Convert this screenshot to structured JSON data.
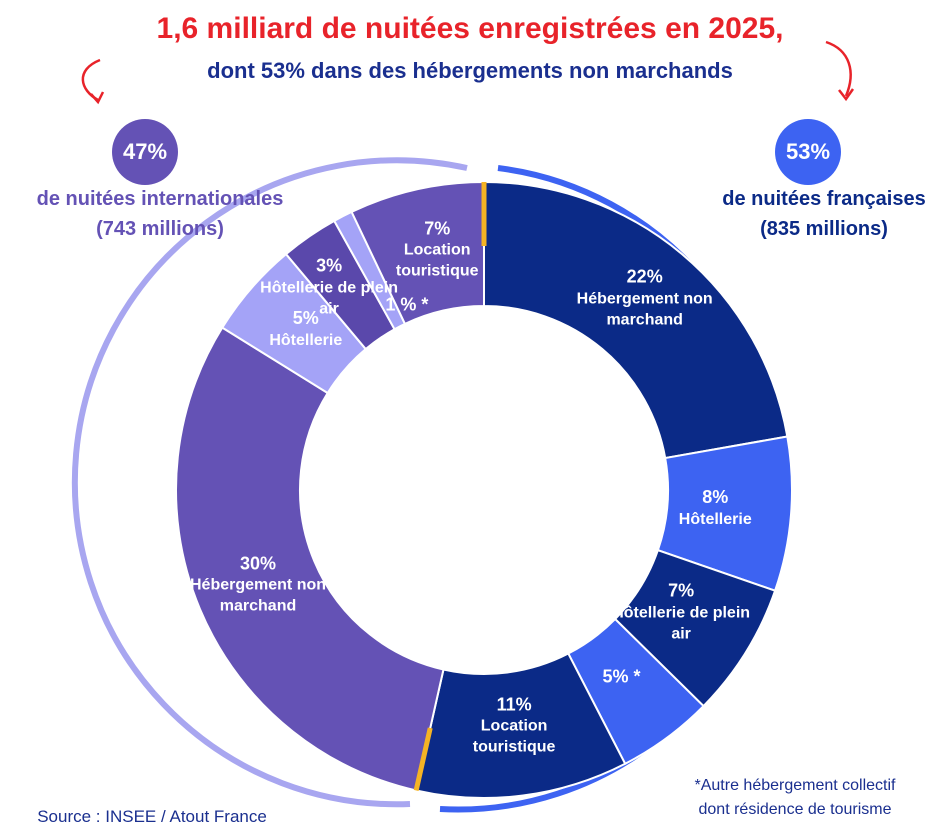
{
  "title": "1,6 milliard de nuitées enregistrées en 2025,",
  "subtitle": "dont 53% dans des hébergements non marchands",
  "groups": [
    {
      "percent": "47%",
      "label": "de nuitées internationales",
      "detail": "(743 millions)"
    },
    {
      "percent": "53%",
      "label": "de nuitées françaises",
      "detail": "(835 millions)"
    }
  ],
  "source": "Source : INSEE / Atout France",
  "footnote": [
    "*Autre hébergement collectif",
    "dont résidence de tourisme"
  ],
  "chart_data": {
    "type": "donut",
    "categories": [
      "Hébergement non marchand",
      "Hôtellerie",
      "Hôtellerie de plein air",
      null,
      "Location touristique",
      "Hébergement non marchand",
      "Hôtellerie",
      "Hôtellerie de plein air",
      null,
      "Location touristique"
    ],
    "values": [
      22,
      8,
      7,
      5,
      11,
      30,
      5,
      3,
      1,
      7
    ],
    "value_labels": [
      "22%",
      "8%",
      "7%",
      "5% *",
      "11%",
      "30%",
      "5%",
      "3%",
      "1 % *",
      "7%"
    ],
    "colors": [
      "#0b2a87",
      "#3d63f2",
      "#0b2a87",
      "#3d63f2",
      "#0b2a87",
      "#6452b5",
      "#a4a3f7",
      "#5a48ab",
      "#a4a3f7",
      "#6452b5"
    ]
  }
}
